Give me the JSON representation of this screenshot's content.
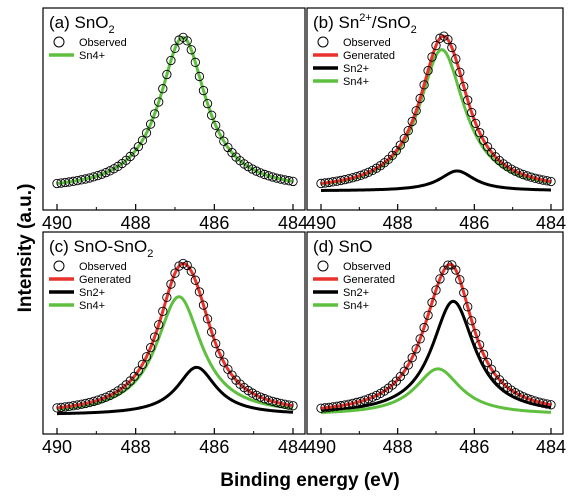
{
  "chart_data": {
    "type": "line",
    "xlabel": "Binding energy (eV)",
    "ylabel": "Intensity (a.u.)",
    "xlim": [
      490,
      484
    ],
    "xticks": [
      490,
      488,
      486,
      484
    ],
    "ylim": [
      0,
      1.12
    ],
    "colors": {
      "Observed": "#000000",
      "Generated": "#e8322c",
      "Sn2+": "#000000",
      "Sn4+": "#5fbf3f"
    },
    "panels": [
      {
        "title_prefix": "(a) SnO",
        "title_sub": "2",
        "title_sup": "",
        "title_suffix": "",
        "legend": [
          "Observed",
          "Sn4+"
        ],
        "components": [
          {
            "name": "Sn4+",
            "center": 486.8,
            "height": 1.0,
            "width": 0.72
          }
        ],
        "show_generated": false,
        "show_components": true
      },
      {
        "title_prefix": "(b) Sn",
        "title_sup": "2+",
        "title_mid": "/SnO",
        "title_sub": "2",
        "title_suffix": "",
        "legend": [
          "Observed",
          "Generated",
          "Sn2+",
          "Sn4+"
        ],
        "components": [
          {
            "name": "Sn2+",
            "center": 486.45,
            "height": 0.13,
            "width": 0.55
          },
          {
            "name": "Sn4+",
            "center": 486.85,
            "height": 0.92,
            "width": 0.72
          }
        ],
        "show_generated": true,
        "show_components": true
      },
      {
        "title_prefix": "(c) SnO-SnO",
        "title_sub": "2",
        "title_sup": "",
        "title_suffix": "",
        "legend": [
          "Observed",
          "Generated",
          "Sn2+",
          "Sn4+"
        ],
        "components": [
          {
            "name": "Sn2+",
            "center": 486.45,
            "height": 0.31,
            "width": 0.6
          },
          {
            "name": "Sn4+",
            "center": 486.9,
            "height": 0.77,
            "width": 0.7
          }
        ],
        "show_generated": true,
        "show_components": true
      },
      {
        "title_prefix": "(d) SnO",
        "title_sub": "",
        "title_sup": "",
        "title_suffix": "",
        "legend": [
          "Observed",
          "Generated",
          "Sn2+",
          "Sn4+"
        ],
        "components": [
          {
            "name": "Sn2+",
            "center": 486.55,
            "height": 0.74,
            "width": 0.68
          },
          {
            "name": "Sn4+",
            "center": 486.95,
            "height": 0.3,
            "width": 0.72
          }
        ],
        "show_generated": true,
        "show_components": true
      }
    ]
  }
}
